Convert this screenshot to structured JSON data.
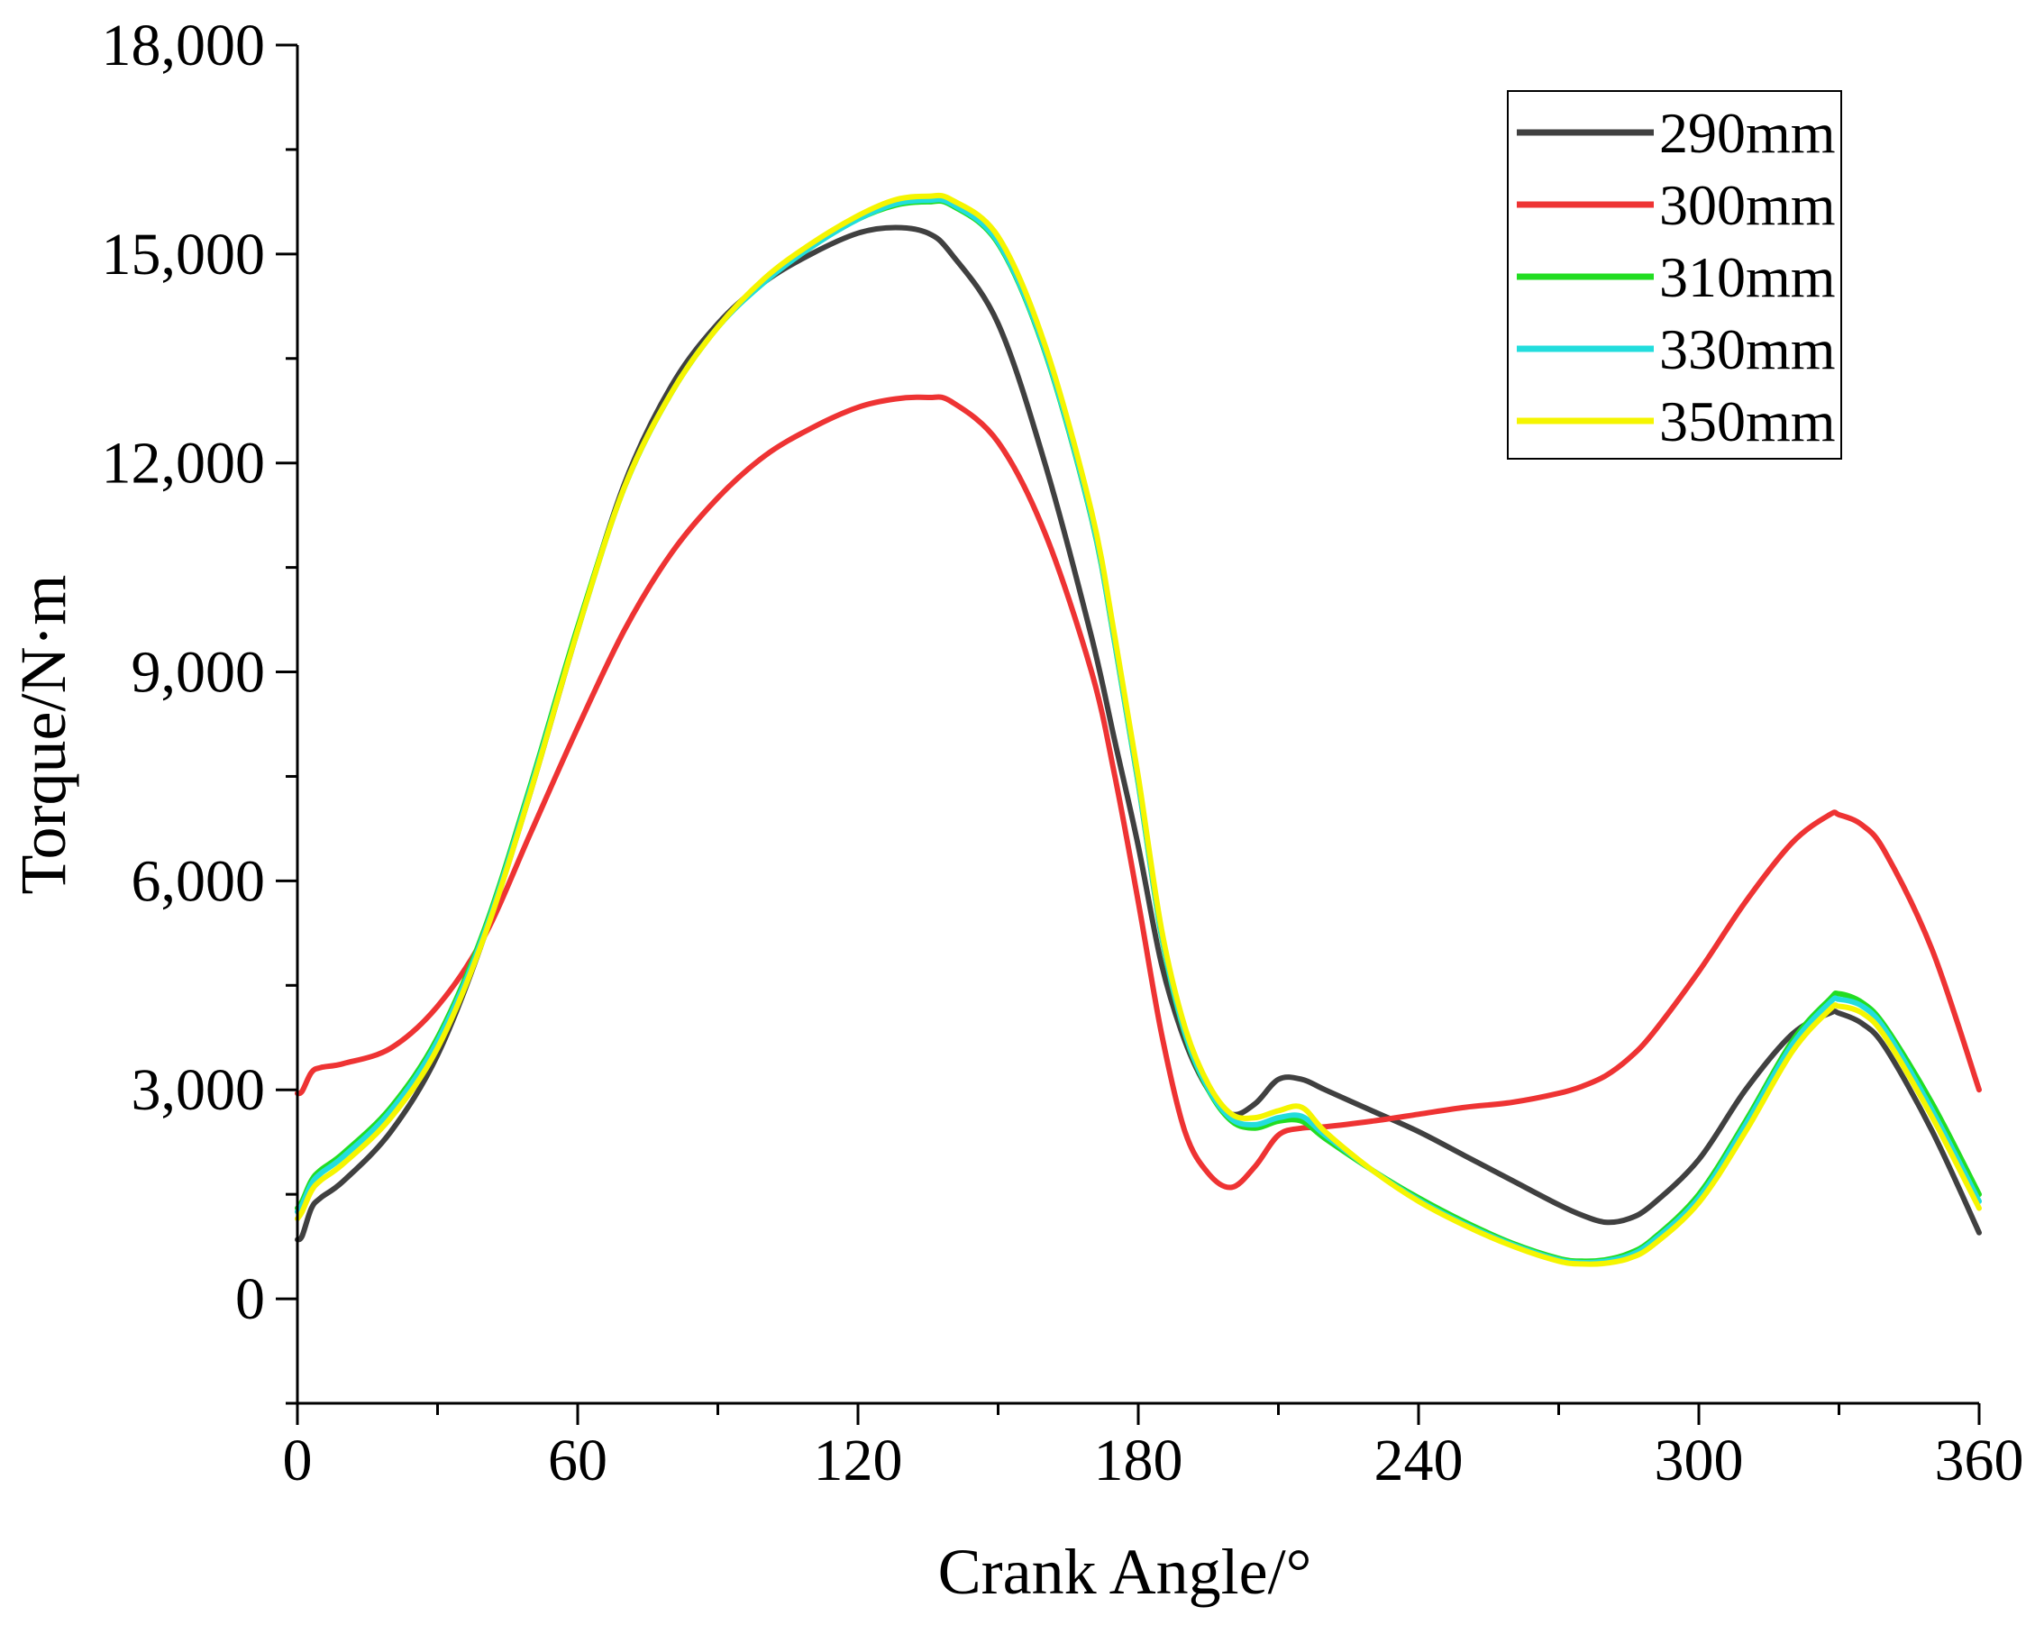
{
  "chart_data": {
    "type": "line",
    "title": "",
    "xlabel": "Crank Angle/°",
    "ylabel": "Torque/N·m",
    "xlim": [
      0,
      360
    ],
    "ylim": [
      -1500,
      18000
    ],
    "xticks": [
      0,
      60,
      120,
      180,
      240,
      300,
      360
    ],
    "xtick_labels": [
      "0",
      "60",
      "120",
      "180",
      "240",
      "300",
      "360"
    ],
    "yticks": [
      0,
      3000,
      6000,
      9000,
      12000,
      15000,
      18000
    ],
    "ytick_labels": [
      "0",
      "3,000",
      "6,000",
      "9,000",
      "12,000",
      "15,000",
      "18,000"
    ],
    "grid": false,
    "legend_position": "top-right",
    "x": [
      0,
      1,
      3,
      5,
      10,
      20,
      30,
      40,
      50,
      60,
      70,
      80,
      90,
      100,
      110,
      120,
      128,
      135,
      140,
      150,
      160,
      170,
      175,
      180,
      185,
      190,
      195,
      200,
      205,
      210,
      215,
      220,
      230,
      240,
      250,
      260,
      270,
      275,
      280,
      285,
      290,
      300,
      310,
      320,
      328,
      330,
      335,
      340,
      350,
      360
    ],
    "series": [
      {
        "name": "290mm",
        "color": "#404040",
        "values": [
          850,
          900,
          1300,
          1450,
          1700,
          2400,
          3500,
          5200,
          7300,
          9600,
          11700,
          13100,
          14000,
          14600,
          15000,
          15300,
          15380,
          15300,
          15000,
          14000,
          12000,
          9500,
          8000,
          6500,
          4800,
          3700,
          3000,
          2650,
          2800,
          3150,
          3150,
          3000,
          2700,
          2400,
          2050,
          1700,
          1350,
          1200,
          1100,
          1150,
          1350,
          2000,
          3000,
          3800,
          4100,
          4100,
          3950,
          3600,
          2400,
          950
        ]
      },
      {
        "name": "300mm",
        "color": "#ee3333",
        "values": [
          2950,
          2980,
          3250,
          3320,
          3380,
          3600,
          4200,
          5200,
          6700,
          8200,
          9600,
          10700,
          11500,
          12100,
          12500,
          12800,
          12920,
          12940,
          12880,
          12300,
          11000,
          9000,
          7500,
          5700,
          3800,
          2400,
          1800,
          1600,
          1900,
          2350,
          2450,
          2470,
          2550,
          2650,
          2750,
          2820,
          2950,
          3050,
          3200,
          3450,
          3800,
          4700,
          5700,
          6550,
          6950,
          6950,
          6800,
          6400,
          5000,
          3000
        ]
      },
      {
        "name": "310mm",
        "color": "#22dd22",
        "values": [
          1300,
          1400,
          1700,
          1850,
          2100,
          2750,
          3750,
          5300,
          7400,
          9650,
          11650,
          13000,
          13950,
          14600,
          15100,
          15500,
          15700,
          15750,
          15700,
          15150,
          13600,
          11200,
          9400,
          7400,
          5200,
          3800,
          3000,
          2550,
          2450,
          2550,
          2550,
          2300,
          1850,
          1450,
          1100,
          800,
          580,
          540,
          560,
          650,
          850,
          1500,
          2550,
          3700,
          4300,
          4380,
          4250,
          3900,
          2800,
          1500
        ]
      },
      {
        "name": "330mm",
        "color": "#22dddd",
        "values": [
          1250,
          1350,
          1650,
          1800,
          2050,
          2700,
          3700,
          5250,
          7350,
          9600,
          11650,
          13000,
          13950,
          14600,
          15100,
          15500,
          15720,
          15770,
          15720,
          15170,
          13620,
          11220,
          9420,
          7420,
          5220,
          3820,
          3020,
          2580,
          2500,
          2600,
          2620,
          2350,
          1850,
          1420,
          1070,
          780,
          560,
          520,
          540,
          620,
          820,
          1450,
          2500,
          3650,
          4250,
          4300,
          4200,
          3850,
          2700,
          1400
        ]
      },
      {
        "name": "350mm",
        "color": "#f5f500",
        "values": [
          1150,
          1250,
          1550,
          1700,
          1950,
          2600,
          3600,
          5200,
          7300,
          9600,
          11650,
          13000,
          13950,
          14650,
          15150,
          15550,
          15780,
          15830,
          15780,
          15250,
          13700,
          11300,
          9500,
          7500,
          5300,
          3900,
          3080,
          2650,
          2600,
          2700,
          2750,
          2400,
          1850,
          1400,
          1050,
          760,
          540,
          500,
          510,
          580,
          760,
          1380,
          2400,
          3550,
          4150,
          4200,
          4100,
          3750,
          2600,
          1300
        ]
      }
    ]
  }
}
